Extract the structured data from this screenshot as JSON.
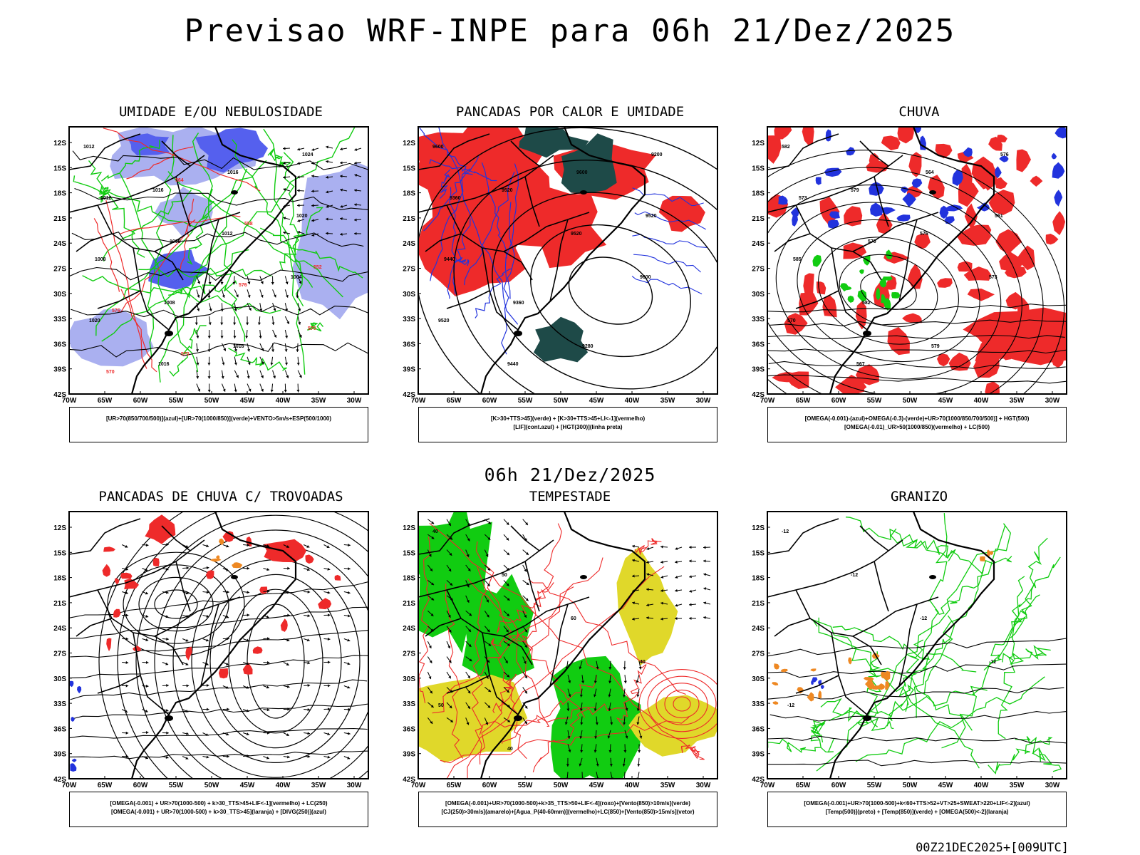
{
  "main_title": "Previsao WRF-INPE  para 06h 21/Dez/2025",
  "mid_date": "06h 21/Dez/2025",
  "footer_stamp": "00Z21DEC2025+[009UTC]",
  "axes": {
    "lat_labels": [
      "12S",
      "15S",
      "18S",
      "21S",
      "24S",
      "27S",
      "30S",
      "33S",
      "36S",
      "39S",
      "42S"
    ],
    "lon_labels": [
      "70W",
      "65W",
      "60W",
      "55W",
      "50W",
      "45W",
      "40W",
      "35W",
      "30W"
    ]
  },
  "colors": {
    "red": "#ee2a2a",
    "blue": "#2233dd",
    "green": "#11cc11",
    "lightblue": "#aab0f0",
    "midblue": "#5560ee",
    "darkteal": "#1e4a48",
    "yellow": "#e0d82a",
    "orange": "#ee8822",
    "black": "#000000"
  },
  "panels": [
    {
      "title": "UMIDADE E/OU NEBULOSIDADE",
      "legend": [
        "[UR>70(850/700/500)](azul)+[UR>70(1000/850)](verde)+VENTO>5m/s+ESP(500/1000)"
      ],
      "contour_labels": [
        "1012",
        "1016",
        "1012",
        "1004",
        "1020",
        "1016",
        "1016",
        "1020",
        "1008",
        "1008",
        "1016",
        "1024",
        "1012",
        "1008",
        "576",
        "570",
        "570",
        "564",
        "558",
        "552",
        "576",
        "570"
      ]
    },
    {
      "title": "PANCADAS POR CALOR E UMIDADE",
      "legend": [
        "[K>30+TTS>45](verde) + [K>30+TTS>45+LI<-1](vermelho)",
        "[LIF](cont.azul) + [HGT(300)](linha preta)"
      ],
      "contour_labels": [
        "9600",
        "9520",
        "9520",
        "9600",
        "9520",
        "9440",
        "9600",
        "9520",
        "9440",
        "9360",
        "9280",
        "9200",
        "9360"
      ]
    },
    {
      "title": "CHUVA",
      "legend": [
        "[OMEGA(-0.001)-(azul)+OMEGA(-0.3)-(verde)+UR>70(1000/850/700/500)] + HGT(500)",
        "[OMEGA(-0.01)_UR>50(1000/850)(vermelho) + LC(500)"
      ],
      "contour_labels": [
        "582",
        "579",
        "576",
        "573",
        "570",
        "567",
        "564",
        "561",
        "585",
        "582",
        "579",
        "576",
        "573",
        "570"
      ]
    },
    {
      "title": "PANCADAS DE CHUVA C/ TROVOADAS",
      "legend": [
        "[OMEGA(-0.001) + UR>70(1000-500) + k>30_TTS>45+LIF<-1](vermelho) + LC(250)",
        "[OMEGA(-0.001) + UR>70(1000-500) + k>30_TTS>45](laranja) + [DIVG(250)](azul)"
      ],
      "contour_labels": []
    },
    {
      "title": "TEMPESTADE",
      "legend": [
        "[OMEGA(-0.001)+UR>70(1000-500)+k>35_TTS>50+LIF<-4](roxo)+[Vento(850)>10m/s](verde)",
        "[CJ(250)>30m/s](amarelo)+[Agua_P(40-60mm)](vermelho)+LC(850)+[Vento(850)>15m/s](vetor)"
      ],
      "contour_labels": [
        "40",
        "50",
        "60",
        "40",
        "50",
        "40"
      ]
    },
    {
      "title": "GRANIZO",
      "legend": [
        "[OMEGA(-0.001)+UR>70(1000-500)+k<60+TTS>52+VT>25+SWEAT>220+LIF<-2](azul)",
        "[Temp(500)](preto) + [Temp(850)](verde) + [OMEGA(500)<-2](laranja)"
      ],
      "contour_labels": [
        "-12",
        "-12",
        "-12",
        "-12",
        "-12"
      ]
    }
  ]
}
